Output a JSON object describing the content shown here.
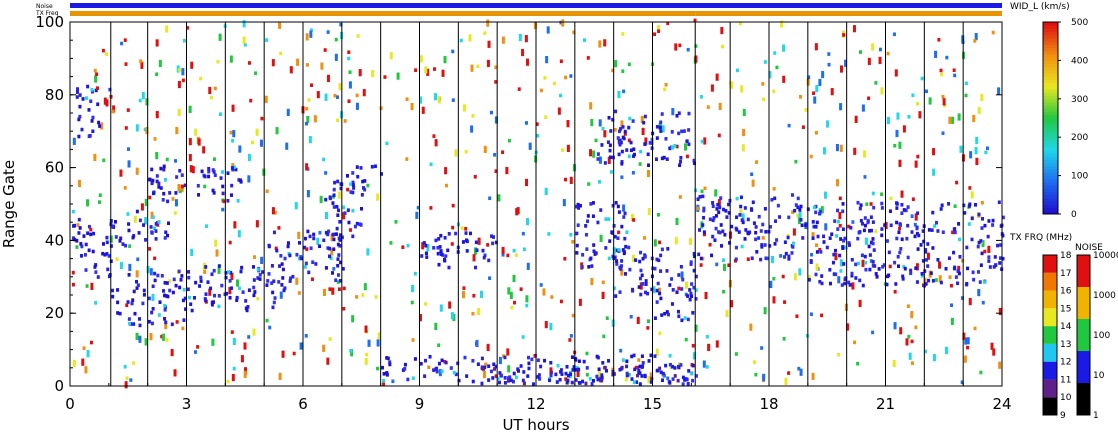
{
  "chart_data": {
    "type": "heatmap",
    "title": "",
    "xlabel": "UT hours",
    "ylabel": "Range Gate",
    "xlim": [
      0,
      24
    ],
    "ylim": [
      0,
      100
    ],
    "x_ticks": [
      "0",
      "3",
      "6",
      "9",
      "12",
      "15",
      "18",
      "21",
      "24"
    ],
    "y_ticks": [
      "0",
      "20",
      "40",
      "60",
      "80",
      "100"
    ],
    "status_bars": {
      "noise_label": "Noise",
      "txfreq_label": "TX Freq",
      "noise_color": "#1a1ae6",
      "txfreq_segments": [
        {
          "start": 0,
          "end": 16.1,
          "color": "#e69500"
        },
        {
          "start": 16.1,
          "end": 24,
          "color": "#e69500"
        }
      ]
    },
    "scan_boundaries_ut": [
      1.05,
      2.0,
      3.0,
      4.0,
      5.0,
      6.0,
      7.0,
      8.0,
      9.0,
      10.0,
      11.0,
      12.0,
      13.0,
      14.0,
      15.0,
      16.1,
      17.0,
      18.0,
      19.0,
      20.0,
      21.0,
      22.0,
      23.0
    ],
    "width_colorbar": {
      "label": "WID_L (km/s)",
      "ticks": [
        "0",
        "100",
        "200",
        "300",
        "400",
        "500"
      ],
      "range": [
        0,
        500
      ],
      "colors": [
        "#1e10d0",
        "#1e6ef0",
        "#20d8e8",
        "#20c840",
        "#e8e820",
        "#f09010",
        "#e01010"
      ]
    },
    "txfreq_colorbar": {
      "label": "TX FRQ (MHz)",
      "ticks": [
        "9",
        "10",
        "11",
        "12",
        "13",
        "14",
        "15",
        "16",
        "17",
        "18"
      ],
      "colors": [
        "#000000",
        "#60208a",
        "#1a1ae6",
        "#20c8f0",
        "#20c840",
        "#e8e820",
        "#f0b400",
        "#f07800",
        "#e01010"
      ]
    },
    "noise_colorbar": {
      "label": "NOISE",
      "ticks": [
        "1",
        "10",
        "100",
        "1000",
        "10000"
      ],
      "colors": [
        "#000000",
        "#1a1ae6",
        "#20c840",
        "#f0b400",
        "#e01010"
      ]
    },
    "echo_regions": [
      {
        "t0": 0.0,
        "t1": 1.05,
        "g0": 29,
        "g1": 46,
        "c": "blue"
      },
      {
        "t0": 0.1,
        "t1": 1.0,
        "g0": 68,
        "g1": 82,
        "c": "blue"
      },
      {
        "t0": 1.05,
        "t1": 3.0,
        "g0": 16,
        "g1": 31,
        "c": "blue"
      },
      {
        "t0": 3.0,
        "t1": 5.5,
        "g0": 20,
        "g1": 33,
        "c": "blue"
      },
      {
        "t0": 5.0,
        "t1": 7.0,
        "g0": 28,
        "g1": 42,
        "c": "blue"
      },
      {
        "t0": 1.0,
        "t1": 2.5,
        "g0": 38,
        "g1": 48,
        "c": "blue"
      },
      {
        "t0": 2.0,
        "t1": 4.5,
        "g0": 50,
        "g1": 60,
        "c": "blue"
      },
      {
        "t0": 6.5,
        "t1": 7.5,
        "g0": 40,
        "g1": 56,
        "c": "blue"
      },
      {
        "t0": 7.0,
        "t1": 8.0,
        "g0": 52,
        "g1": 60,
        "c": "blue"
      },
      {
        "t0": 9.0,
        "t1": 11.0,
        "g0": 32,
        "g1": 42,
        "c": "blue"
      },
      {
        "t0": 13.0,
        "t1": 14.3,
        "g0": 32,
        "g1": 50,
        "c": "blue"
      },
      {
        "t0": 14.0,
        "t1": 16.1,
        "g0": 24,
        "g1": 38,
        "c": "blue"
      },
      {
        "t0": 15.0,
        "t1": 16.1,
        "g0": 17,
        "g1": 26,
        "c": "blue"
      },
      {
        "t0": 13.5,
        "t1": 16.1,
        "g0": 60,
        "g1": 75,
        "c": "blue"
      },
      {
        "t0": 16.1,
        "t1": 19.0,
        "g0": 34,
        "g1": 52,
        "c": "blue"
      },
      {
        "t0": 19.0,
        "t1": 24.0,
        "g0": 27,
        "g1": 50,
        "c": "blue"
      },
      {
        "t0": 8.0,
        "t1": 16.1,
        "g0": 0,
        "g1": 8,
        "c": "blue"
      },
      {
        "t0": 10.0,
        "t1": 16.1,
        "g0": 0,
        "g1": 5,
        "c": "darkblue"
      }
    ]
  }
}
